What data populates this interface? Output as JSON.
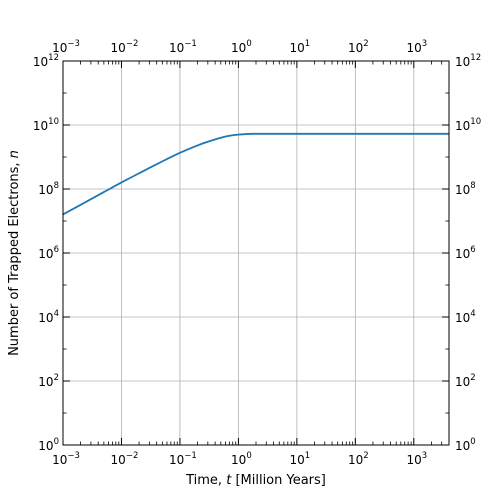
{
  "chart_data": {
    "type": "line",
    "xlabel": "Time, t [Million Years]",
    "xlabel_parts": {
      "before": "Time, ",
      "italic": "t",
      "after": " [Million Years]"
    },
    "ylabel": "Number of Trapped Electrons, n",
    "ylabel_parts": {
      "before": "Number of Trapped Electrons, ",
      "italic": "n",
      "after": ""
    },
    "x_scale": "log",
    "y_scale": "log",
    "xlim": [
      0.001,
      4000
    ],
    "ylim": [
      1,
      1000000000000
    ],
    "x_ticks": [
      {
        "base": "10",
        "exp": "−3",
        "value": 0.001
      },
      {
        "base": "10",
        "exp": "−2",
        "value": 0.01
      },
      {
        "base": "10",
        "exp": "−1",
        "value": 0.1
      },
      {
        "base": "10",
        "exp": "0",
        "value": 1
      },
      {
        "base": "10",
        "exp": "1",
        "value": 10
      },
      {
        "base": "10",
        "exp": "2",
        "value": 100
      },
      {
        "base": "10",
        "exp": "3",
        "value": 1000
      }
    ],
    "y_ticks": [
      {
        "base": "10",
        "exp": "0",
        "value": 1
      },
      {
        "base": "10",
        "exp": "2",
        "value": 100
      },
      {
        "base": "10",
        "exp": "4",
        "value": 10000
      },
      {
        "base": "10",
        "exp": "6",
        "value": 1000000
      },
      {
        "base": "10",
        "exp": "8",
        "value": 100000000
      },
      {
        "base": "10",
        "exp": "10",
        "value": 10000000000
      },
      {
        "base": "10",
        "exp": "12",
        "value": 1000000000000
      }
    ],
    "ticks_mirrored_top_and_right": true,
    "grid": true,
    "legend": "none",
    "series": [
      {
        "color": "#1f77b4",
        "x": [
          0.001,
          0.002,
          0.005,
          0.01,
          0.02,
          0.05,
          0.1,
          0.2,
          0.3,
          0.5,
          0.7,
          1,
          1.5,
          2,
          5,
          10,
          100,
          1000,
          4000
        ],
        "y": [
          16000000.0,
          32000000.0,
          80000000.0,
          160000000.0,
          310000000.0,
          730000000.0,
          1350000000.0,
          2300000000.0,
          3000000000.0,
          4000000000.0,
          4600000000.0,
          5000000000.0,
          5250000000.0,
          5300000000.0,
          5300000000.0,
          5300000000.0,
          5300000000.0,
          5300000000.0,
          5300000000.0
        ]
      }
    ]
  }
}
